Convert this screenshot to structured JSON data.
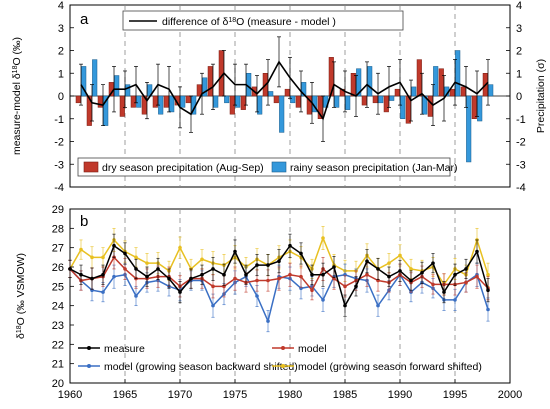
{
  "chart_data": [
    {
      "type": "bar",
      "panel_label": "a",
      "xlim": [
        1960,
        2000
      ],
      "ylim": [
        -4,
        4
      ],
      "y_right_lim": [
        -4,
        4
      ],
      "yticks": [
        -4,
        -3,
        -2,
        -1,
        0,
        1,
        2,
        3,
        4
      ],
      "ylabel": "measure-model δ¹⁸O (‰)",
      "ylabel_main": "measure-model δ",
      "ylabel_sup": "18",
      "ylabel_tail": "O (‰)",
      "y2label": "Precipitation (σ)",
      "grid": "vertical dashed every 5 years",
      "legend_position": "top-center and bottom",
      "legend": {
        "line_prefix": "difference of  δ",
        "line_sup": "18",
        "line_suffix": "O (measure - model )",
        "dry_label": "dry season precipitation (Aug-Sep)",
        "rainy_label": "rainy season precipitation (Jan-Mar)"
      },
      "colors": {
        "dry": "#c0392b",
        "rainy": "#3498db",
        "line": "#000000"
      },
      "years": [
        1961,
        1962,
        1963,
        1964,
        1965,
        1966,
        1967,
        1968,
        1969,
        1970,
        1971,
        1972,
        1973,
        1974,
        1975,
        1976,
        1977,
        1978,
        1979,
        1980,
        1981,
        1982,
        1983,
        1984,
        1985,
        1986,
        1987,
        1988,
        1989,
        1990,
        1991,
        1992,
        1993,
        1994,
        1995,
        1996,
        1997,
        1998
      ],
      "series": [
        {
          "name": "dry season precipitation (Aug-Sep)",
          "values": [
            -0.3,
            -1.3,
            -0.5,
            0.6,
            -0.9,
            -0.5,
            -0.8,
            -0.5,
            -0.5,
            -0.4,
            -0.3,
            0.5,
            1.3,
            2.0,
            -0.8,
            -0.6,
            0.4,
            1.0,
            -0.3,
            0.3,
            -0.5,
            -0.8,
            -1.0,
            1.7,
            0.3,
            1.0,
            -0.4,
            -0.3,
            -0.7,
            0.3,
            -1.2,
            1.6,
            -0.9,
            1.2,
            0.3,
            0.4,
            -1.0,
            1.0
          ]
        },
        {
          "name": "rainy season precipitation (Jan-Mar)",
          "values": [
            1.3,
            1.6,
            -1.3,
            0.9,
            0.5,
            -0.5,
            0.5,
            -0.8,
            -0.7,
            -0.5,
            -0.8,
            0.8,
            -0.5,
            -0.3,
            -0.5,
            1.0,
            -0.8,
            0.2,
            -1.6,
            -0.3,
            0.6,
            -0.7,
            -0.5,
            -0.5,
            -0.6,
            1.2,
            1.3,
            -0.3,
            -0.2,
            -1.0,
            0.4,
            -0.8,
            1.3,
            0.4,
            2.0,
            -2.9,
            -1.1,
            0.5
          ]
        },
        {
          "name": "difference of δ18O (measure - model )",
          "values": [
            0.5,
            -0.3,
            -0.4,
            0.3,
            0.3,
            0.5,
            -0.2,
            0.5,
            0.3,
            -0.5,
            -0.8,
            0.1,
            0.4,
            1.0,
            0.5,
            0.5,
            0.1,
            0.6,
            1.5,
            0.8,
            0.2,
            -0.3,
            -1.0,
            0.5,
            0.2,
            0.0,
            0.5,
            0.1,
            0.4,
            0.6,
            -0.2,
            0.1,
            -0.4,
            -0.1,
            0.6,
            0.4,
            0.1,
            0.6
          ]
        },
        {
          "name": "error",
          "values": [
            0.9,
            0.8,
            0.9,
            1.0,
            0.8,
            0.8,
            0.8,
            0.9,
            1.0,
            0.9,
            0.8,
            0.9,
            1.0,
            1.0,
            0.9,
            0.9,
            0.8,
            1.0,
            1.1,
            0.9,
            0.9,
            0.9,
            1.0,
            1.0,
            0.9,
            0.9,
            1.0,
            0.9,
            0.9,
            1.0,
            0.9,
            0.9,
            0.9,
            1.0,
            1.0,
            0.9,
            1.0,
            1.0
          ]
        }
      ]
    },
    {
      "type": "line",
      "panel_label": "b",
      "xlim": [
        1960,
        2000
      ],
      "xticks": [
        1960,
        1965,
        1970,
        1975,
        1980,
        1985,
        1990,
        1995,
        2000
      ],
      "ylim": [
        20,
        29
      ],
      "yticks": [
        20,
        21,
        22,
        23,
        24,
        25,
        26,
        27,
        28,
        29
      ],
      "ylabel": "δ¹⁸O (‰ VSMOW)",
      "ylabel_main": "δ",
      "ylabel_sup": "18",
      "ylabel_tail": "O (‰ VSMOW)",
      "grid": "vertical dashed every 5 years",
      "legend_position": "bottom",
      "x": [
        1960,
        1961,
        1962,
        1963,
        1964,
        1965,
        1966,
        1967,
        1968,
        1969,
        1970,
        1971,
        1972,
        1973,
        1974,
        1975,
        1976,
        1977,
        1978,
        1979,
        1980,
        1981,
        1982,
        1983,
        1984,
        1985,
        1986,
        1987,
        1988,
        1989,
        1990,
        1991,
        1992,
        1993,
        1994,
        1995,
        1996,
        1997,
        1998
      ],
      "series": [
        {
          "name": "measure",
          "color": "#000000",
          "values": [
            25.9,
            25.6,
            25.4,
            25.6,
            27.1,
            26.7,
            25.9,
            25.5,
            25.9,
            25.4,
            24.7,
            25.4,
            25.6,
            25.9,
            25.6,
            26.8,
            25.6,
            26.1,
            26.1,
            26.3,
            27.1,
            26.7,
            25.6,
            25.6,
            26.0,
            24.0,
            25.0,
            26.3,
            25.9,
            25.5,
            25.8,
            25.3,
            25.7,
            26.2,
            24.7,
            25.6,
            25.9,
            26.8,
            24.8
          ]
        },
        {
          "name": "model",
          "color": "#c0392b",
          "values": [
            25.9,
            25.3,
            25.4,
            25.5,
            26.5,
            25.9,
            25.4,
            25.4,
            25.5,
            25.5,
            25.0,
            25.4,
            25.4,
            25.0,
            25.0,
            25.4,
            25.2,
            25.3,
            25.3,
            25.4,
            25.6,
            25.5,
            24.8,
            25.9,
            25.4,
            25.0,
            25.3,
            25.6,
            25.3,
            25.2,
            25.6,
            25.2,
            25.5,
            25.1,
            25.1,
            25.1,
            25.2,
            25.5,
            24.9
          ]
        },
        {
          "name": "model (growing season backward shifted)",
          "color": "#3a6fc4",
          "values": [
            25.9,
            25.3,
            24.8,
            24.7,
            25.5,
            25.6,
            24.5,
            25.2,
            25.3,
            25.0,
            24.8,
            25.3,
            25.3,
            24.0,
            24.6,
            25.2,
            25.5,
            24.5,
            23.2,
            25.5,
            25.4,
            24.9,
            25.0,
            24.3,
            25.5,
            25.6,
            25.4,
            25.3,
            24.0,
            24.8,
            25.6,
            24.7,
            25.2,
            24.9,
            24.3,
            24.3,
            25.2,
            25.6,
            23.8
          ]
        },
        {
          "name": "model (growing season forward shifted)",
          "color": "#e8c020",
          "values": [
            25.9,
            26.9,
            26.5,
            26.5,
            27.4,
            26.8,
            26.5,
            26.2,
            26.2,
            25.8,
            27.0,
            25.9,
            26.4,
            26.2,
            26.1,
            26.5,
            26.0,
            26.4,
            26.1,
            26.5,
            26.8,
            26.5,
            25.9,
            27.5,
            26.1,
            25.8,
            25.8,
            26.6,
            25.9,
            26.2,
            26.6,
            25.9,
            25.8,
            26.0,
            25.1,
            25.9,
            25.6,
            27.4,
            25.6
          ]
        }
      ],
      "error": [
        0.45,
        0.5,
        0.55,
        0.5,
        0.6,
        0.55,
        0.5,
        0.5,
        0.55,
        0.5,
        0.55,
        0.5,
        0.5,
        0.6,
        0.55,
        0.6,
        0.5,
        0.55,
        0.55,
        0.6,
        0.6,
        0.55,
        0.5,
        0.6,
        0.55,
        0.55,
        0.5,
        0.6,
        0.55,
        0.5,
        0.55,
        0.5,
        0.55,
        0.5,
        0.55,
        0.55,
        0.5,
        0.6,
        0.6
      ]
    }
  ]
}
